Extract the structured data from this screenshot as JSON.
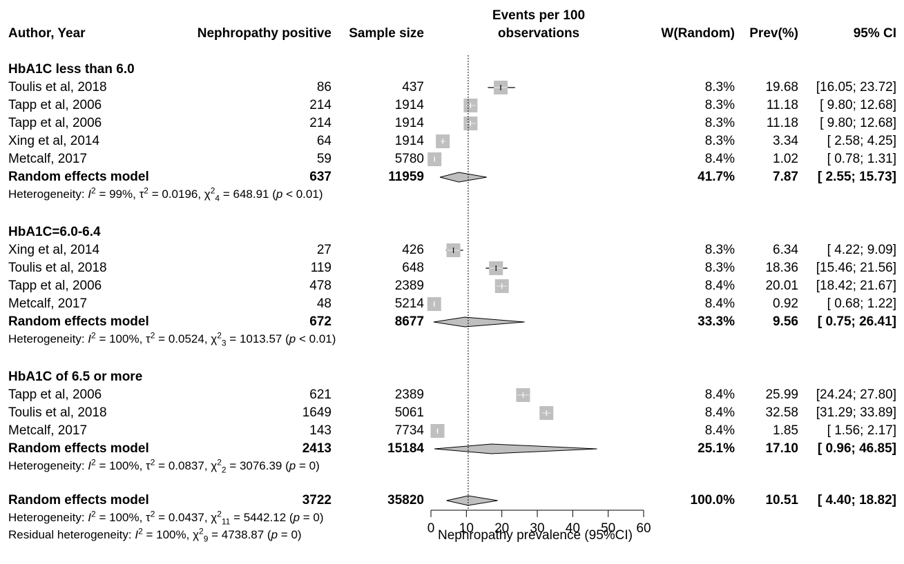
{
  "headers": {
    "author": "Author, Year",
    "positive": "Nephropathy positive",
    "sample": "Sample size",
    "events_line1": "Events per 100",
    "events_line2": "observations",
    "weight": "W(Random)",
    "prev": "Prev(%)",
    "ci": "95% CI"
  },
  "groups": [
    {
      "title": "HbA1C less than 6.0",
      "studies": [
        {
          "author": "Toulis et al, 2018",
          "positive": "86",
          "sample": "437",
          "weight": "8.3%",
          "prev": "19.68",
          "ci": "[16.05; 23.72]"
        },
        {
          "author": "Tapp et al, 2006",
          "positive": "214",
          "sample": "1914",
          "weight": "8.3%",
          "prev": "11.18",
          "ci": "[ 9.80; 12.68]"
        },
        {
          "author": "Tapp et al, 2006",
          "positive": "214",
          "sample": "1914",
          "weight": "8.3%",
          "prev": "11.18",
          "ci": "[ 9.80; 12.68]"
        },
        {
          "author": "Xing et al, 2014",
          "positive": "64",
          "sample": "1914",
          "weight": "8.3%",
          "prev": "3.34",
          "ci": "[ 2.58; 4.25]"
        },
        {
          "author": "Metcalf, 2017",
          "positive": "59",
          "sample": "5780",
          "weight": "8.4%",
          "prev": "1.02",
          "ci": "[ 0.78; 1.31]"
        }
      ],
      "model": {
        "label": "Random effects model",
        "positive": "637",
        "sample": "11959",
        "weight": "41.7%",
        "prev": "7.87",
        "ci": "[ 2.55; 15.73]"
      },
      "het": {
        "prefix": "Heterogeneity: ",
        "I2": "99%",
        "tau2": "0.0196",
        "df": "4",
        "chi2": "648.91",
        "p": "< 0.01"
      }
    },
    {
      "title": "HbA1C=6.0-6.4",
      "studies": [
        {
          "author": "Xing et al, 2014",
          "positive": "27",
          "sample": "426",
          "weight": "8.3%",
          "prev": "6.34",
          "ci": "[ 4.22; 9.09]"
        },
        {
          "author": "Toulis et al, 2018",
          "positive": "119",
          "sample": "648",
          "weight": "8.3%",
          "prev": "18.36",
          "ci": "[15.46; 21.56]"
        },
        {
          "author": "Tapp et al, 2006",
          "positive": "478",
          "sample": "2389",
          "weight": "8.4%",
          "prev": "20.01",
          "ci": "[18.42; 21.67]"
        },
        {
          "author": "Metcalf, 2017",
          "positive": "48",
          "sample": "5214",
          "weight": "8.4%",
          "prev": "0.92",
          "ci": "[ 0.68; 1.22]"
        }
      ],
      "model": {
        "label": "Random effects model",
        "positive": "672",
        "sample": "8677",
        "weight": "33.3%",
        "prev": "9.56",
        "ci": "[ 0.75; 26.41]"
      },
      "het": {
        "prefix": "Heterogeneity: ",
        "I2": "100%",
        "tau2": "0.0524",
        "df": "3",
        "chi2": "1013.57",
        "p": "< 0.01"
      }
    },
    {
      "title": "HbA1C of 6.5 or more",
      "studies": [
        {
          "author": "Tapp et al, 2006",
          "positive": "621",
          "sample": "2389",
          "weight": "8.4%",
          "prev": "25.99",
          "ci": "[24.24; 27.80]"
        },
        {
          "author": "Toulis et al, 2018",
          "positive": "1649",
          "sample": "5061",
          "weight": "8.4%",
          "prev": "32.58",
          "ci": "[31.29; 33.89]"
        },
        {
          "author": "Metcalf, 2017",
          "positive": "143",
          "sample": "7734",
          "weight": "8.4%",
          "prev": "1.85",
          "ci": "[ 1.56; 2.17]"
        }
      ],
      "model": {
        "label": "Random effects model",
        "positive": "2413",
        "sample": "15184",
        "weight": "25.1%",
        "prev": "17.10",
        "ci": "[ 0.96; 46.85]"
      },
      "het": {
        "prefix": "Heterogeneity: ",
        "I2": "100%",
        "tau2": "0.0837",
        "df": "2",
        "chi2": "3076.39",
        "p": "= 0"
      }
    }
  ],
  "overall": {
    "label": "Random effects model",
    "positive": "3722",
    "sample": "35820",
    "weight": "100.0%",
    "prev": "10.51",
    "ci": "[ 4.40; 18.82]",
    "het": {
      "prefix": "Heterogeneity: ",
      "I2": "100%",
      "tau2": "0.0437",
      "df": "11",
      "chi2": "5442.12",
      "p": "= 0"
    },
    "resid": {
      "prefix": "Residual heterogeneity: ",
      "I2": "100%",
      "df": "9",
      "chi2": "4738.87",
      "p": "= 0"
    }
  },
  "colors": {
    "box": "#bfbfbf",
    "diamond": "#bfbfbf",
    "line": "#000000",
    "whisker_on_box": "#ffffff"
  },
  "chart_data": {
    "type": "forest",
    "xlabel": "Nephropathy prevalence (95%CI)",
    "xlim": [
      0,
      60
    ],
    "xticks": [
      0,
      10,
      20,
      30,
      40,
      50,
      60
    ],
    "reference_line": 10.51,
    "subgroups": [
      {
        "name": "HbA1C less than 6.0",
        "studies": [
          {
            "est": 19.68,
            "lo": 16.05,
            "hi": 23.72
          },
          {
            "est": 11.18,
            "lo": 9.8,
            "hi": 12.68
          },
          {
            "est": 11.18,
            "lo": 9.8,
            "hi": 12.68
          },
          {
            "est": 3.34,
            "lo": 2.58,
            "hi": 4.25
          },
          {
            "est": 1.02,
            "lo": 0.78,
            "hi": 1.31
          }
        ],
        "pooled": {
          "est": 7.87,
          "lo": 2.55,
          "hi": 15.73
        }
      },
      {
        "name": "HbA1C=6.0-6.4",
        "studies": [
          {
            "est": 6.34,
            "lo": 4.22,
            "hi": 9.09
          },
          {
            "est": 18.36,
            "lo": 15.46,
            "hi": 21.56
          },
          {
            "est": 20.01,
            "lo": 18.42,
            "hi": 21.67
          },
          {
            "est": 0.92,
            "lo": 0.68,
            "hi": 1.22
          }
        ],
        "pooled": {
          "est": 9.56,
          "lo": 0.75,
          "hi": 26.41
        }
      },
      {
        "name": "HbA1C of 6.5 or more",
        "studies": [
          {
            "est": 25.99,
            "lo": 24.24,
            "hi": 27.8
          },
          {
            "est": 32.58,
            "lo": 31.29,
            "hi": 33.89
          },
          {
            "est": 1.85,
            "lo": 1.56,
            "hi": 2.17
          }
        ],
        "pooled": {
          "est": 17.1,
          "lo": 0.96,
          "hi": 46.85
        }
      }
    ],
    "overall": {
      "est": 10.51,
      "lo": 4.4,
      "hi": 18.82
    }
  }
}
